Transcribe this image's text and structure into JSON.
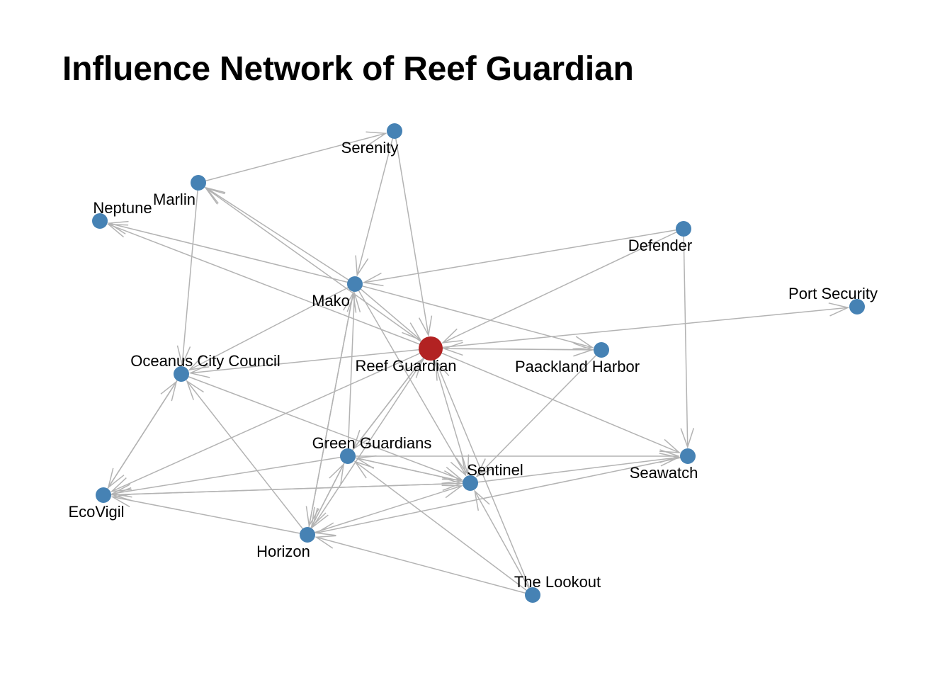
{
  "title": "Influence Network of Reef Guardian",
  "colors": {
    "node": "#4682b4",
    "center_node": "#b22222",
    "edge": "#b3b3b3"
  },
  "nodes": [
    {
      "id": "reef",
      "label": "Reef Guardian",
      "center": true
    },
    {
      "id": "serenity",
      "label": "Serenity"
    },
    {
      "id": "marlin",
      "label": "Marlin"
    },
    {
      "id": "neptune",
      "label": "Neptune"
    },
    {
      "id": "defender",
      "label": "Defender"
    },
    {
      "id": "port",
      "label": "Port Security"
    },
    {
      "id": "mako",
      "label": "Mako"
    },
    {
      "id": "paackland",
      "label": "Paackland Harbor"
    },
    {
      "id": "oceanus",
      "label": "Oceanus City Council"
    },
    {
      "id": "green",
      "label": "Green Guardians"
    },
    {
      "id": "seawatch",
      "label": "Seawatch"
    },
    {
      "id": "sentinel",
      "label": "Sentinel"
    },
    {
      "id": "ecovigil",
      "label": "EcoVigil"
    },
    {
      "id": "horizon",
      "label": "Horizon"
    },
    {
      "id": "lookout",
      "label": "The Lookout"
    }
  ],
  "edges": [
    [
      "marlin",
      "serenity"
    ],
    [
      "serenity",
      "reef"
    ],
    [
      "serenity",
      "mako"
    ],
    [
      "marlin",
      "oceanus"
    ],
    [
      "mako",
      "marlin"
    ],
    [
      "reef",
      "marlin"
    ],
    [
      "mako",
      "neptune"
    ],
    [
      "reef",
      "neptune"
    ],
    [
      "defender",
      "mako"
    ],
    [
      "defender",
      "reef"
    ],
    [
      "defender",
      "seawatch"
    ],
    [
      "reef",
      "port"
    ],
    [
      "mako",
      "paackland"
    ],
    [
      "reef",
      "paackland"
    ],
    [
      "paackland",
      "reef"
    ],
    [
      "mako",
      "reef"
    ],
    [
      "reef",
      "oceanus"
    ],
    [
      "mako",
      "oceanus"
    ],
    [
      "reef",
      "seawatch"
    ],
    [
      "reef",
      "ecovigil"
    ],
    [
      "paackland",
      "sentinel"
    ],
    [
      "reef",
      "sentinel"
    ],
    [
      "mako",
      "sentinel"
    ],
    [
      "reef",
      "green"
    ],
    [
      "green",
      "reef"
    ],
    [
      "reef",
      "horizon"
    ],
    [
      "oceanus",
      "sentinel"
    ],
    [
      "horizon",
      "oceanus"
    ],
    [
      "oceanus",
      "ecovigil"
    ],
    [
      "ecovigil",
      "oceanus"
    ],
    [
      "green",
      "ecovigil"
    ],
    [
      "green",
      "sentinel"
    ],
    [
      "sentinel",
      "green"
    ],
    [
      "green",
      "seawatch"
    ],
    [
      "green",
      "horizon"
    ],
    [
      "horizon",
      "green"
    ],
    [
      "ecovigil",
      "sentinel"
    ],
    [
      "sentinel",
      "ecovigil"
    ],
    [
      "horizon",
      "ecovigil"
    ],
    [
      "seawatch",
      "horizon"
    ],
    [
      "horizon",
      "sentinel"
    ],
    [
      "sentinel",
      "seawatch"
    ],
    [
      "lookout",
      "horizon"
    ],
    [
      "lookout",
      "green"
    ],
    [
      "lookout",
      "sentinel"
    ],
    [
      "lookout",
      "reef"
    ],
    [
      "mako",
      "horizon"
    ],
    [
      "horizon",
      "mako"
    ],
    [
      "green",
      "mako"
    ]
  ]
}
